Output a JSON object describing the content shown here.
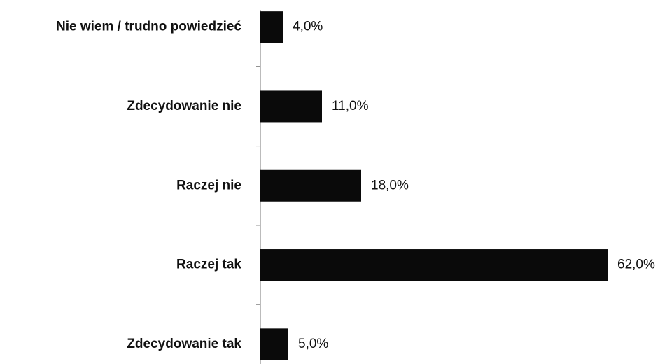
{
  "chart_data": {
    "type": "bar",
    "orientation": "horizontal",
    "categories": [
      "Nie wiem / trudno powiedzieć",
      "Zdecydowanie nie",
      "Raczej nie",
      "Raczej tak",
      "Zdecydowanie tak"
    ],
    "values": [
      4,
      11,
      18,
      62,
      5
    ],
    "value_labels": [
      "4,0%",
      "11,0%",
      "18,0%",
      "62,0%",
      "5,0%"
    ],
    "color": "#0a0a0a"
  }
}
